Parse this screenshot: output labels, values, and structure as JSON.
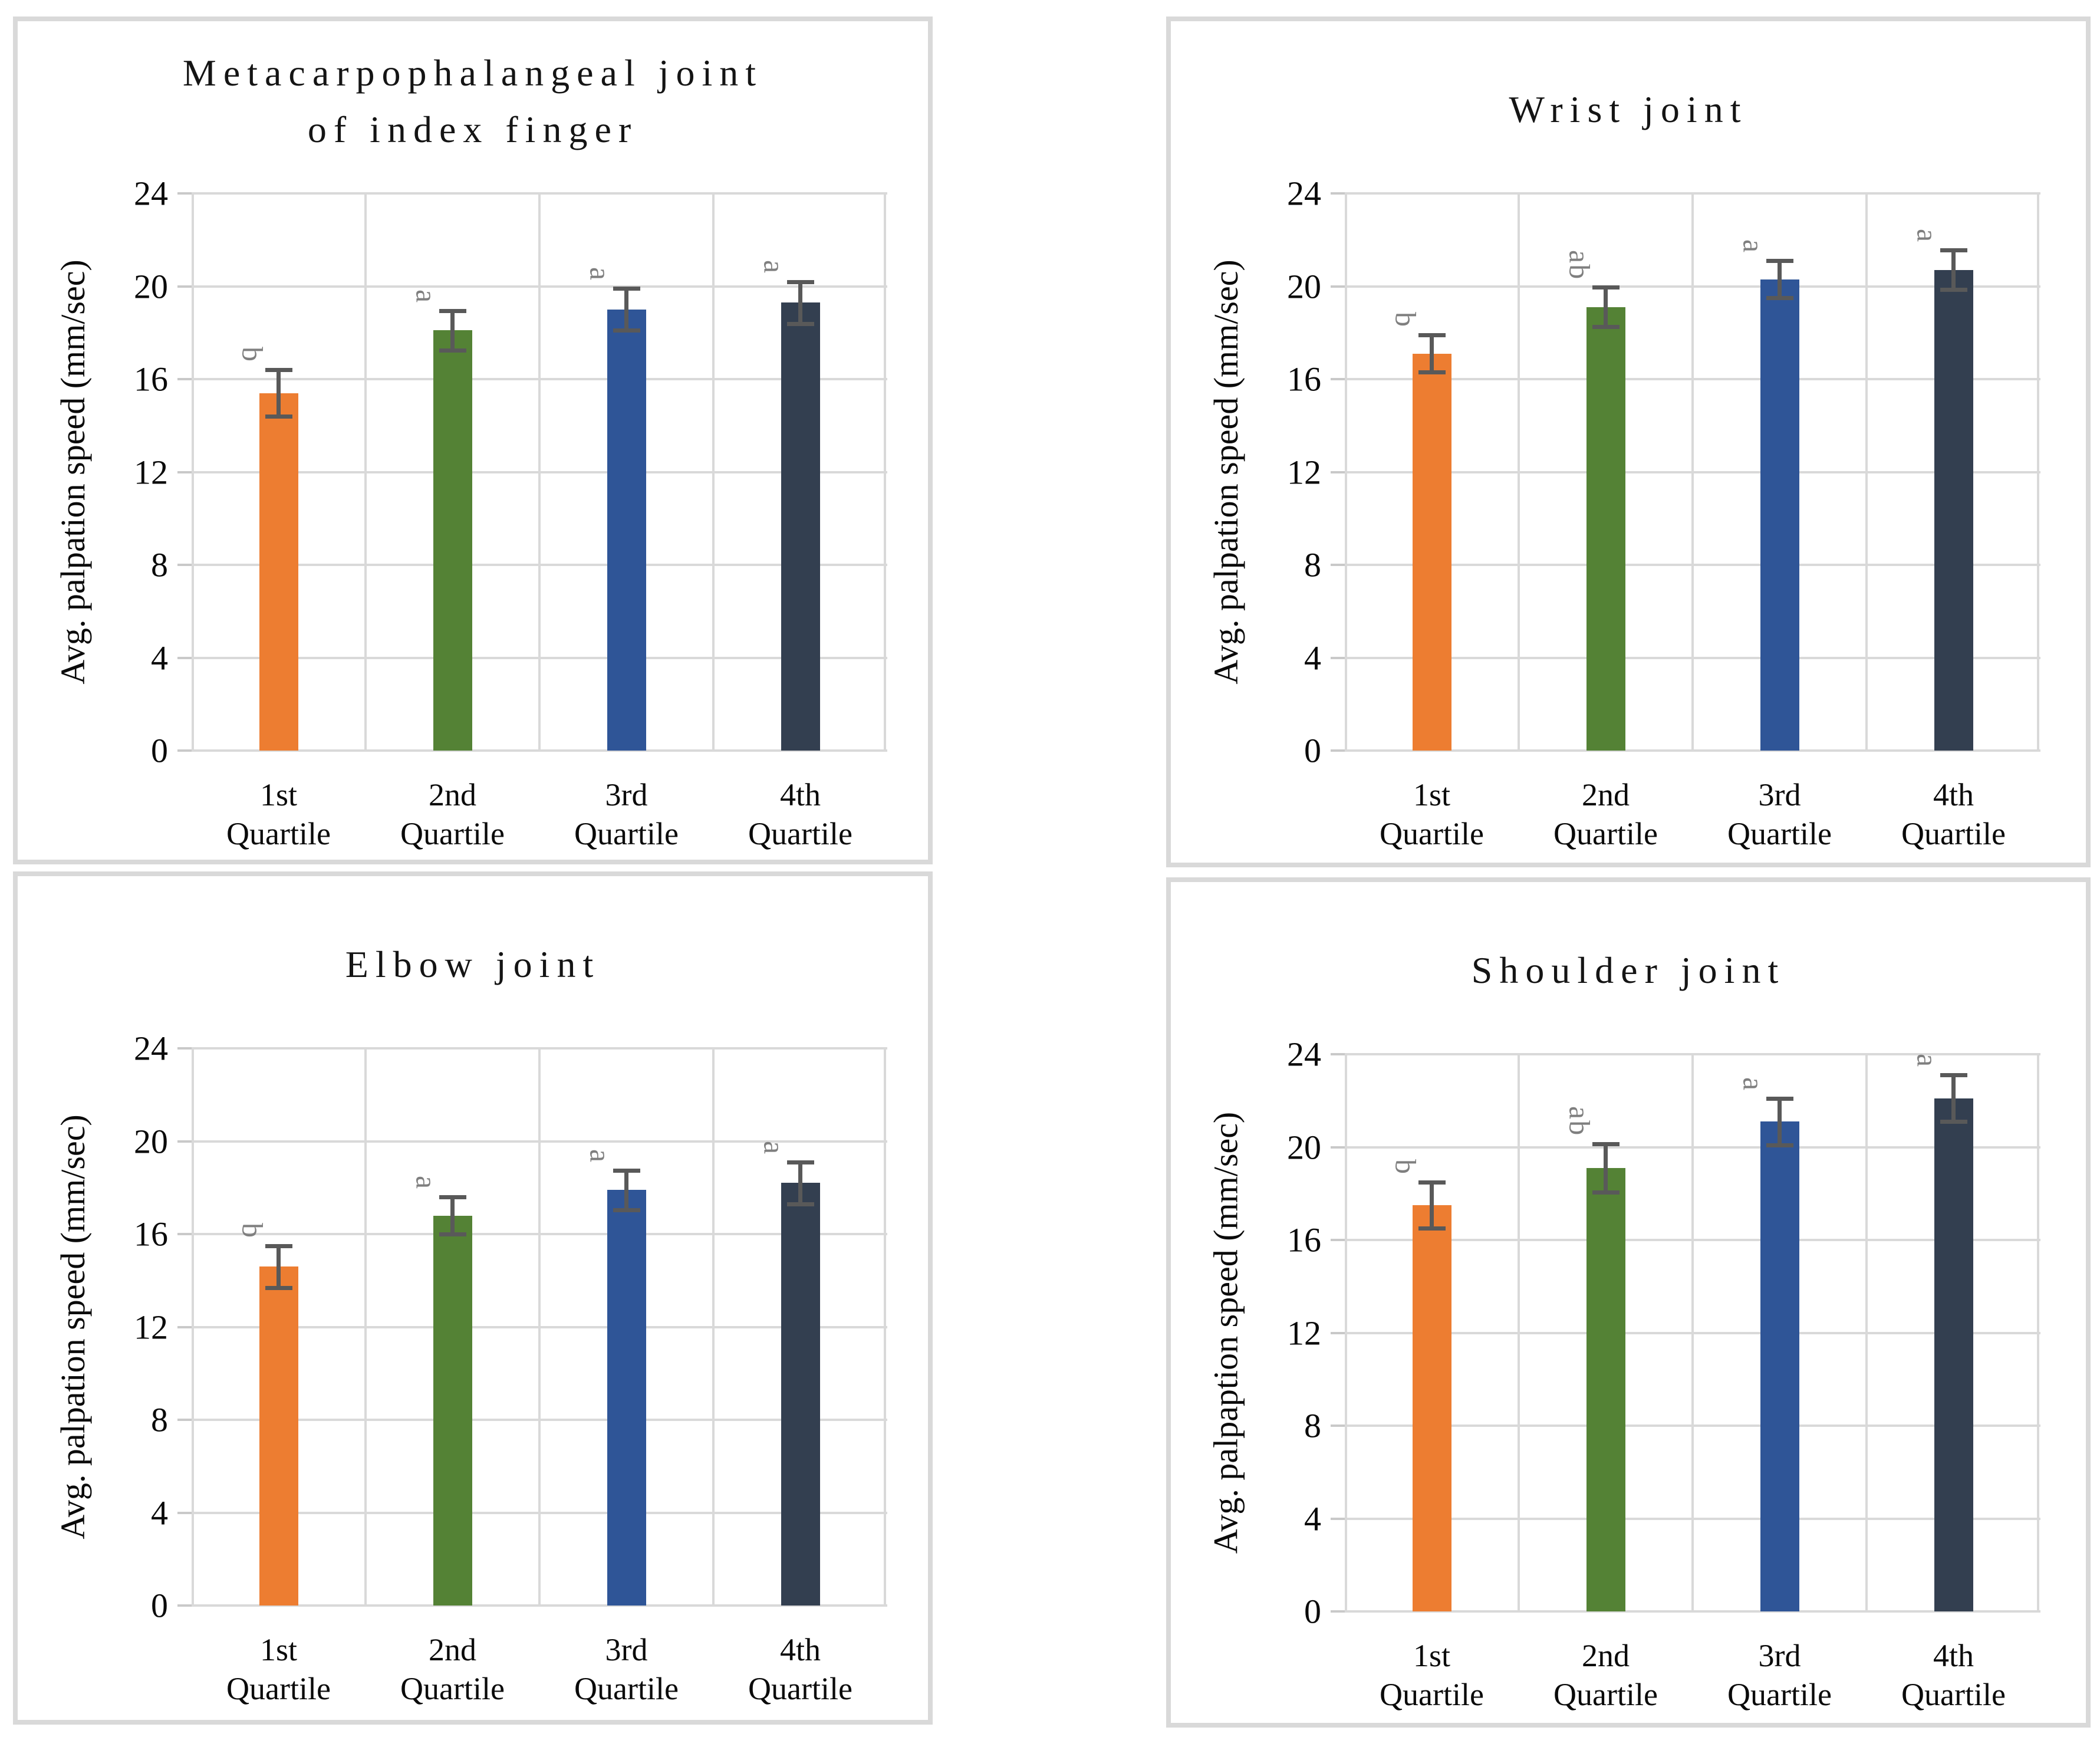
{
  "figure": {
    "description": "Four bar charts of average palpation speed (mm/sec) by quartile for different joints"
  },
  "style": {
    "bar_colors": [
      "#ED7D31",
      "#548235",
      "#2F5597",
      "#333F50"
    ],
    "error_bar_color": "#595959",
    "sig_letter_color": "#7F7F7F",
    "grid_color": "#D9D9D9",
    "panel_border_color": "#D9D9D9",
    "title_color": "#141414"
  },
  "chart_data": [
    {
      "type": "bar",
      "title": "Metacarpophalangeal joint of index finger",
      "title_lines": [
        "Metacarpophalangeal joint",
        "of index finger"
      ],
      "ylabel": "Avg. palpation speed (mm/sec)",
      "xlabel": "",
      "categories": [
        "1st Quartile",
        "2nd Quartile",
        "3rd Quartile",
        "4th Quartile"
      ],
      "values": [
        15.4,
        18.1,
        19.0,
        19.3
      ],
      "error_bars": [
        1.0,
        0.85,
        0.9,
        0.9
      ],
      "sig_letters": [
        "b",
        "a",
        "a",
        "a"
      ],
      "ylim": [
        0,
        24
      ],
      "yticks": [
        0,
        4,
        8,
        12,
        16,
        20,
        24
      ],
      "grid": true,
      "legend": false
    },
    {
      "type": "bar",
      "title": "Wrist joint",
      "title_lines": [
        "Wrist joint"
      ],
      "ylabel": "Avg. palpation speed (mm/sec)",
      "xlabel": "",
      "categories": [
        "1st Quartile",
        "2nd Quartile",
        "3rd Quartile",
        "4th Quartile"
      ],
      "values": [
        17.1,
        19.1,
        20.3,
        20.7
      ],
      "error_bars": [
        0.8,
        0.85,
        0.8,
        0.85
      ],
      "sig_letters": [
        "b",
        "ab",
        "a",
        "a"
      ],
      "ylim": [
        0,
        24
      ],
      "yticks": [
        0,
        4,
        8,
        12,
        16,
        20,
        24
      ],
      "grid": true,
      "legend": false
    },
    {
      "type": "bar",
      "title": "Elbow joint",
      "title_lines": [
        "Elbow joint"
      ],
      "ylabel": "Avg. palpation speed (mm/sec)",
      "xlabel": "",
      "categories": [
        "1st Quartile",
        "2nd Quartile",
        "3rd Quartile",
        "4th Quartile"
      ],
      "values": [
        14.6,
        16.8,
        17.9,
        18.2
      ],
      "error_bars": [
        0.9,
        0.8,
        0.85,
        0.9
      ],
      "sig_letters": [
        "b",
        "a",
        "a",
        "a"
      ],
      "ylim": [
        0,
        24
      ],
      "yticks": [
        0,
        4,
        8,
        12,
        16,
        20,
        24
      ],
      "grid": true,
      "legend": false
    },
    {
      "type": "bar",
      "title": "Shoulder joint",
      "title_lines": [
        "Shoulder joint"
      ],
      "ylabel": "Avg. palpaption speed (mm/sec)",
      "xlabel": "",
      "categories": [
        "1st Quartile",
        "2nd Quartile",
        "3rd Quartile",
        "4th Quartile"
      ],
      "values": [
        17.5,
        19.1,
        21.1,
        22.1
      ],
      "error_bars": [
        1.0,
        1.05,
        1.0,
        1.0
      ],
      "sig_letters": [
        "b",
        "ab",
        "a",
        "a"
      ],
      "ylim": [
        0,
        24
      ],
      "yticks": [
        0,
        4,
        8,
        12,
        16,
        20,
        24
      ],
      "grid": true,
      "legend": false
    }
  ]
}
